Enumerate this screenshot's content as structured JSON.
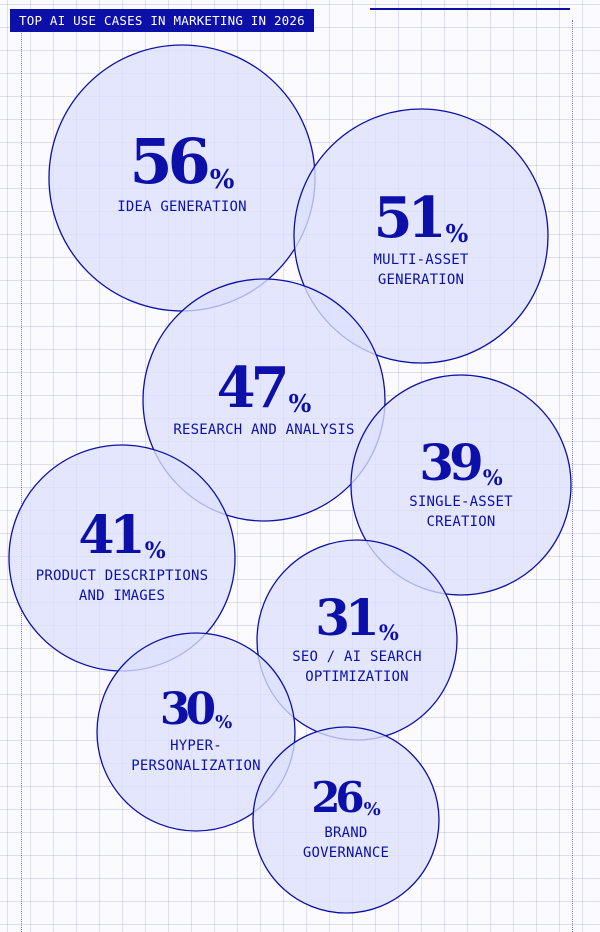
{
  "title": "TOP AI USE CASES IN MARKETING IN 2026",
  "colors": {
    "accent": "#0c10a8",
    "bubble_fill": "#dde0fb",
    "bubble_stroke": "#0c10a8",
    "background": "#fbfbff"
  },
  "chart_data": {
    "type": "bubble",
    "unit": "%",
    "title": "TOP AI USE CASES IN MARKETING IN 2026",
    "items": [
      {
        "label": "IDEA GENERATION",
        "value": 56,
        "value_text": "56"
      },
      {
        "label": "MULTI-ASSET\nGENERATION",
        "value": 51,
        "value_text": "51"
      },
      {
        "label": "RESEARCH AND ANALYSIS",
        "value": 47,
        "value_text": "47"
      },
      {
        "label": "SINGLE-ASSET\nCREATION",
        "value": 39,
        "value_text": "39"
      },
      {
        "label": "PRODUCT DESCRIPTIONS\nAND IMAGES",
        "value": 41,
        "value_text": "41"
      },
      {
        "label": "SEO / AI SEARCH\nOPTIMIZATION",
        "value": 31,
        "value_text": "31"
      },
      {
        "label": "HYPER-\nPERSONALIZATION",
        "value": 30,
        "value_text": "30"
      },
      {
        "label": "BRAND\nGOVERNANCE",
        "value": 26,
        "value_text": "26"
      }
    ]
  }
}
